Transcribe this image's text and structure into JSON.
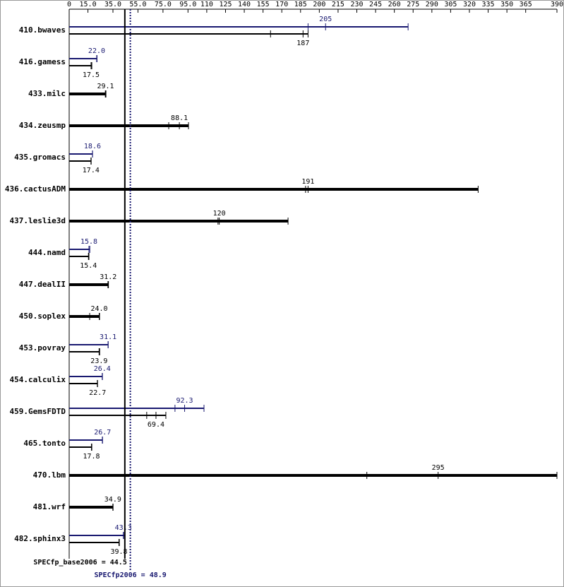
{
  "chart_data": {
    "type": "runbar",
    "categories": [
      "410.bwaves",
      "416.gamess",
      "433.milc",
      "434.zeusmp",
      "435.gromacs",
      "436.cactusADM",
      "437.leslie3d",
      "444.namd",
      "447.dealII",
      "450.soplex",
      "453.povray",
      "454.calculix",
      "459.GemsFDTD",
      "465.tonto",
      "470.lbm",
      "481.wrf",
      "482.sphinx3"
    ],
    "xlim": [
      0,
      390
    ],
    "xticks": [
      0,
      {
        "value": 15,
        "label": "15.0"
      },
      {
        "value": 35,
        "label": "35.0"
      },
      {
        "value": 55,
        "label": "55.0"
      },
      {
        "value": 75,
        "label": "75.0"
      },
      {
        "value": 95,
        "label": "95.0"
      },
      110,
      125,
      140,
      155,
      170,
      185,
      200,
      215,
      230,
      245,
      260,
      275,
      290,
      305,
      320,
      335,
      350,
      365,
      390
    ],
    "series": [
      {
        "color": "#000000",
        "values": [
          187,
          17.5,
          29.1,
          88.1,
          17.4,
          191,
          120,
          15.4,
          31.2,
          24.0,
          23.9,
          22.7,
          69.4,
          17.8,
          295,
          34.9,
          39.8
        ],
        "value_labels": [
          "187",
          "17.5",
          "29.1",
          "88.1",
          "17.4",
          "191",
          "120",
          "15.4",
          "31.2",
          "24.0",
          "23.9",
          "22.7",
          "69.4",
          "17.8",
          "295",
          "34.9",
          "39.8"
        ],
        "runs": [
          [
            161,
            191
          ],
          [
            18.1
          ],
          [
            28.9,
            29.4
          ],
          [
            79.6,
            95.4
          ],
          [
            17.6
          ],
          [
            189,
            327
          ],
          [
            119,
            175
          ],
          [
            15.8
          ],
          [
            31.0,
            31.4
          ],
          [
            16.4,
            24.3
          ],
          [
            24.4
          ],
          [
            22.5
          ],
          [
            62.0,
            77.3
          ],
          [
            18.1
          ],
          [
            238,
            390
          ],
          [
            35.1
          ],
          [
            40.1
          ]
        ]
      },
      {
        "color": "#191970",
        "values": [
          205,
          22.0,
          null,
          null,
          18.6,
          null,
          null,
          15.8,
          null,
          null,
          31.1,
          26.4,
          92.3,
          26.7,
          null,
          null,
          43.3
        ],
        "value_labels": [
          "205",
          "22.0",
          null,
          null,
          "18.6",
          null,
          null,
          "15.8",
          null,
          null,
          "31.1",
          "26.4",
          "92.3",
          "26.7",
          null,
          null,
          "43.3"
        ],
        "runs": [
          [
            191,
            271
          ],
          [
            22.3
          ],
          null,
          null,
          [
            18.7
          ],
          null,
          null,
          [
            16.5
          ],
          null,
          null,
          [
            31.2
          ],
          [
            26.6
          ],
          [
            84.6,
            107.8
          ],
          [
            26.5
          ],
          null,
          null,
          [
            44.0
          ]
        ]
      }
    ],
    "reference_lines": [
      {
        "value": 44.5,
        "label": "SPECfp_base2006 = 44.5",
        "color": "#000000",
        "style": "solid"
      },
      {
        "value": 48.9,
        "label": "SPECfp2006 = 48.9",
        "color": "#191970",
        "style": "dotted"
      }
    ]
  }
}
